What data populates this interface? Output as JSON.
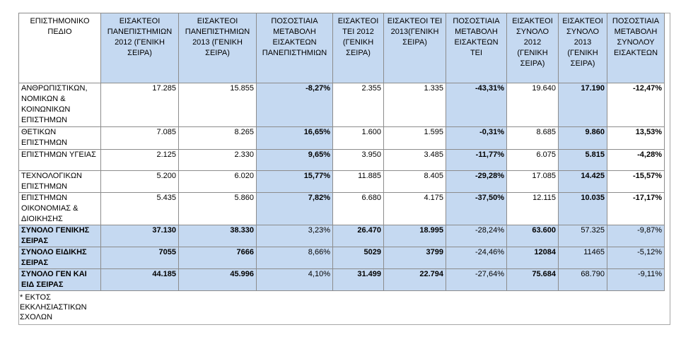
{
  "header": [
    "ΕΠΙΣΤΗΜΟΝΙΚΟ ΠΕΔΙΟ",
    "ΕΙΣΑΚΤΕΟΙ ΠΑΝΕΠΙΣΤΗΜΙΩΝ 2012 (ΓΕΝΙΚΗ ΣΕΙΡΑ)",
    "ΕΙΣΑΚΤΕΟΙ ΠΑΝΕΠΙΣΤΗΜΙΩΝ 2013 (ΓΕΝΙΚΗ ΣΕΙΡΑ)",
    "ΠΟΣΟΣΤΙΑΙΑ ΜΕΤΑΒΟΛΗ ΕΙΣΑΚΤΕΩΝ ΠΑΝΕΠΙΣΤΗΜΙΩΝ",
    "ΕΙΣΑΚΤΕΟΙ ΤΕΙ 2012 (ΓΕΝΙΚΗ ΣΕΙΡΑ)",
    "ΕΙΣΑΚΤΕΟΙ ΤΕΙ 2013(ΓΕΝΙΚΗ ΣΕΙΡΑ)",
    "ΠΟΣΟΣΤΙΑΙΑ ΜΕΤΑΒΟΛΗ ΕΙΣΑΚΤΕΩΝ ΤΕΙ",
    "ΕΙΣΑΚΤΕΟΙ ΣΥΝΟΛΟ 2012 (ΓΕΝΙΚΗ ΣΕΙΡΑ)",
    "ΕΙΣΑΚΤΕΟΙ ΣΥΝΟΛΟ 2013 (ΓΕΝΙΚΗ ΣΕΙΡΑ)",
    "ΠΟΣΟΣΤΙΑΙΑ ΜΕΤΑΒΟΛΗ ΣΥΝΟΛΟΥ ΕΙΣΑΚΤΕΩΝ"
  ],
  "rows": [
    [
      "ΑΝΘΡΩΠΙΣΤΙΚΩΝ, ΝΟΜΙΚΩΝ & ΚΟΙΝΩΝΙΚΩΝ ΕΠΙΣΤΗΜΩΝ",
      "17.285",
      "15.855",
      "-8,27%",
      "2.355",
      "1.335",
      "-43,31%",
      "19.640",
      "17.190",
      "-12,47%"
    ],
    [
      "ΘΕΤΙΚΩΝ ΕΠΙΣΤΗΜΩΝ",
      "7.085",
      "8.265",
      "16,65%",
      "1.600",
      "1.595",
      "-0,31%",
      "8.685",
      "9.860",
      "13,53%"
    ],
    [
      "ΕΠΙΣΤΗΜΩΝ ΥΓΕΙΑΣ",
      "2.125",
      "2.330",
      "9,65%",
      "3.950",
      "3.485",
      "-11,77%",
      "6.075",
      "5.815",
      "-4,28%"
    ],
    [
      "ΤΕΧΝΟΛΟΓΙΚΩΝ ΕΠΙΣΤΗΜΩΝ",
      "5.200",
      "6.020",
      "15,77%",
      "11.885",
      "8.405",
      "-29,28%",
      "17.085",
      "14.425",
      "-15,57%"
    ],
    [
      "ΕΠΙΣΤΗΜΩΝ ΟΙΚΟΝΟΜΙΑΣ & ΔΙΟΙΚΗΣΗΣ",
      "5.435",
      "5.860",
      "7,82%",
      "6.680",
      "4.175",
      "-37,50%",
      "12.115",
      "10.035",
      "-17,17%"
    ]
  ],
  "totals": [
    [
      "ΣΥΝΟΛΟ ΓΕΝΙΚΗΣ ΣΕΙΡΑΣ",
      "37.130",
      "38.330",
      "3,23%",
      "26.470",
      "18.995",
      "-28,24%",
      "63.600",
      "57.325",
      "-9,87%"
    ],
    [
      "ΣΥΝΟΛΟ ΕΙΔΙΚΗΣ ΣΕΙΡΑΣ",
      "7055",
      "7666",
      "8,66%",
      "5029",
      "3799",
      "-24,46%",
      "12084",
      "11465",
      "-5,12%"
    ],
    [
      "ΣΥΝΟΛΟ ΓΕΝ ΚΑΙ ΕΙΔ ΣΕΙΡΑΣ",
      "44.185",
      "45.996",
      "4,10%",
      "31.499",
      "22.794",
      "-27,64%",
      "75.684",
      "68.790",
      "-9,11%"
    ]
  ],
  "footnote": "* ΕΚΤΟΣ ΕΚΚΛΗΣΙΑΣΤΙΚΩΝ ΣΧΟΛΩΝ",
  "colors": {
    "header_fill": "#c5d9f1",
    "border": "#8c8c8c"
  }
}
